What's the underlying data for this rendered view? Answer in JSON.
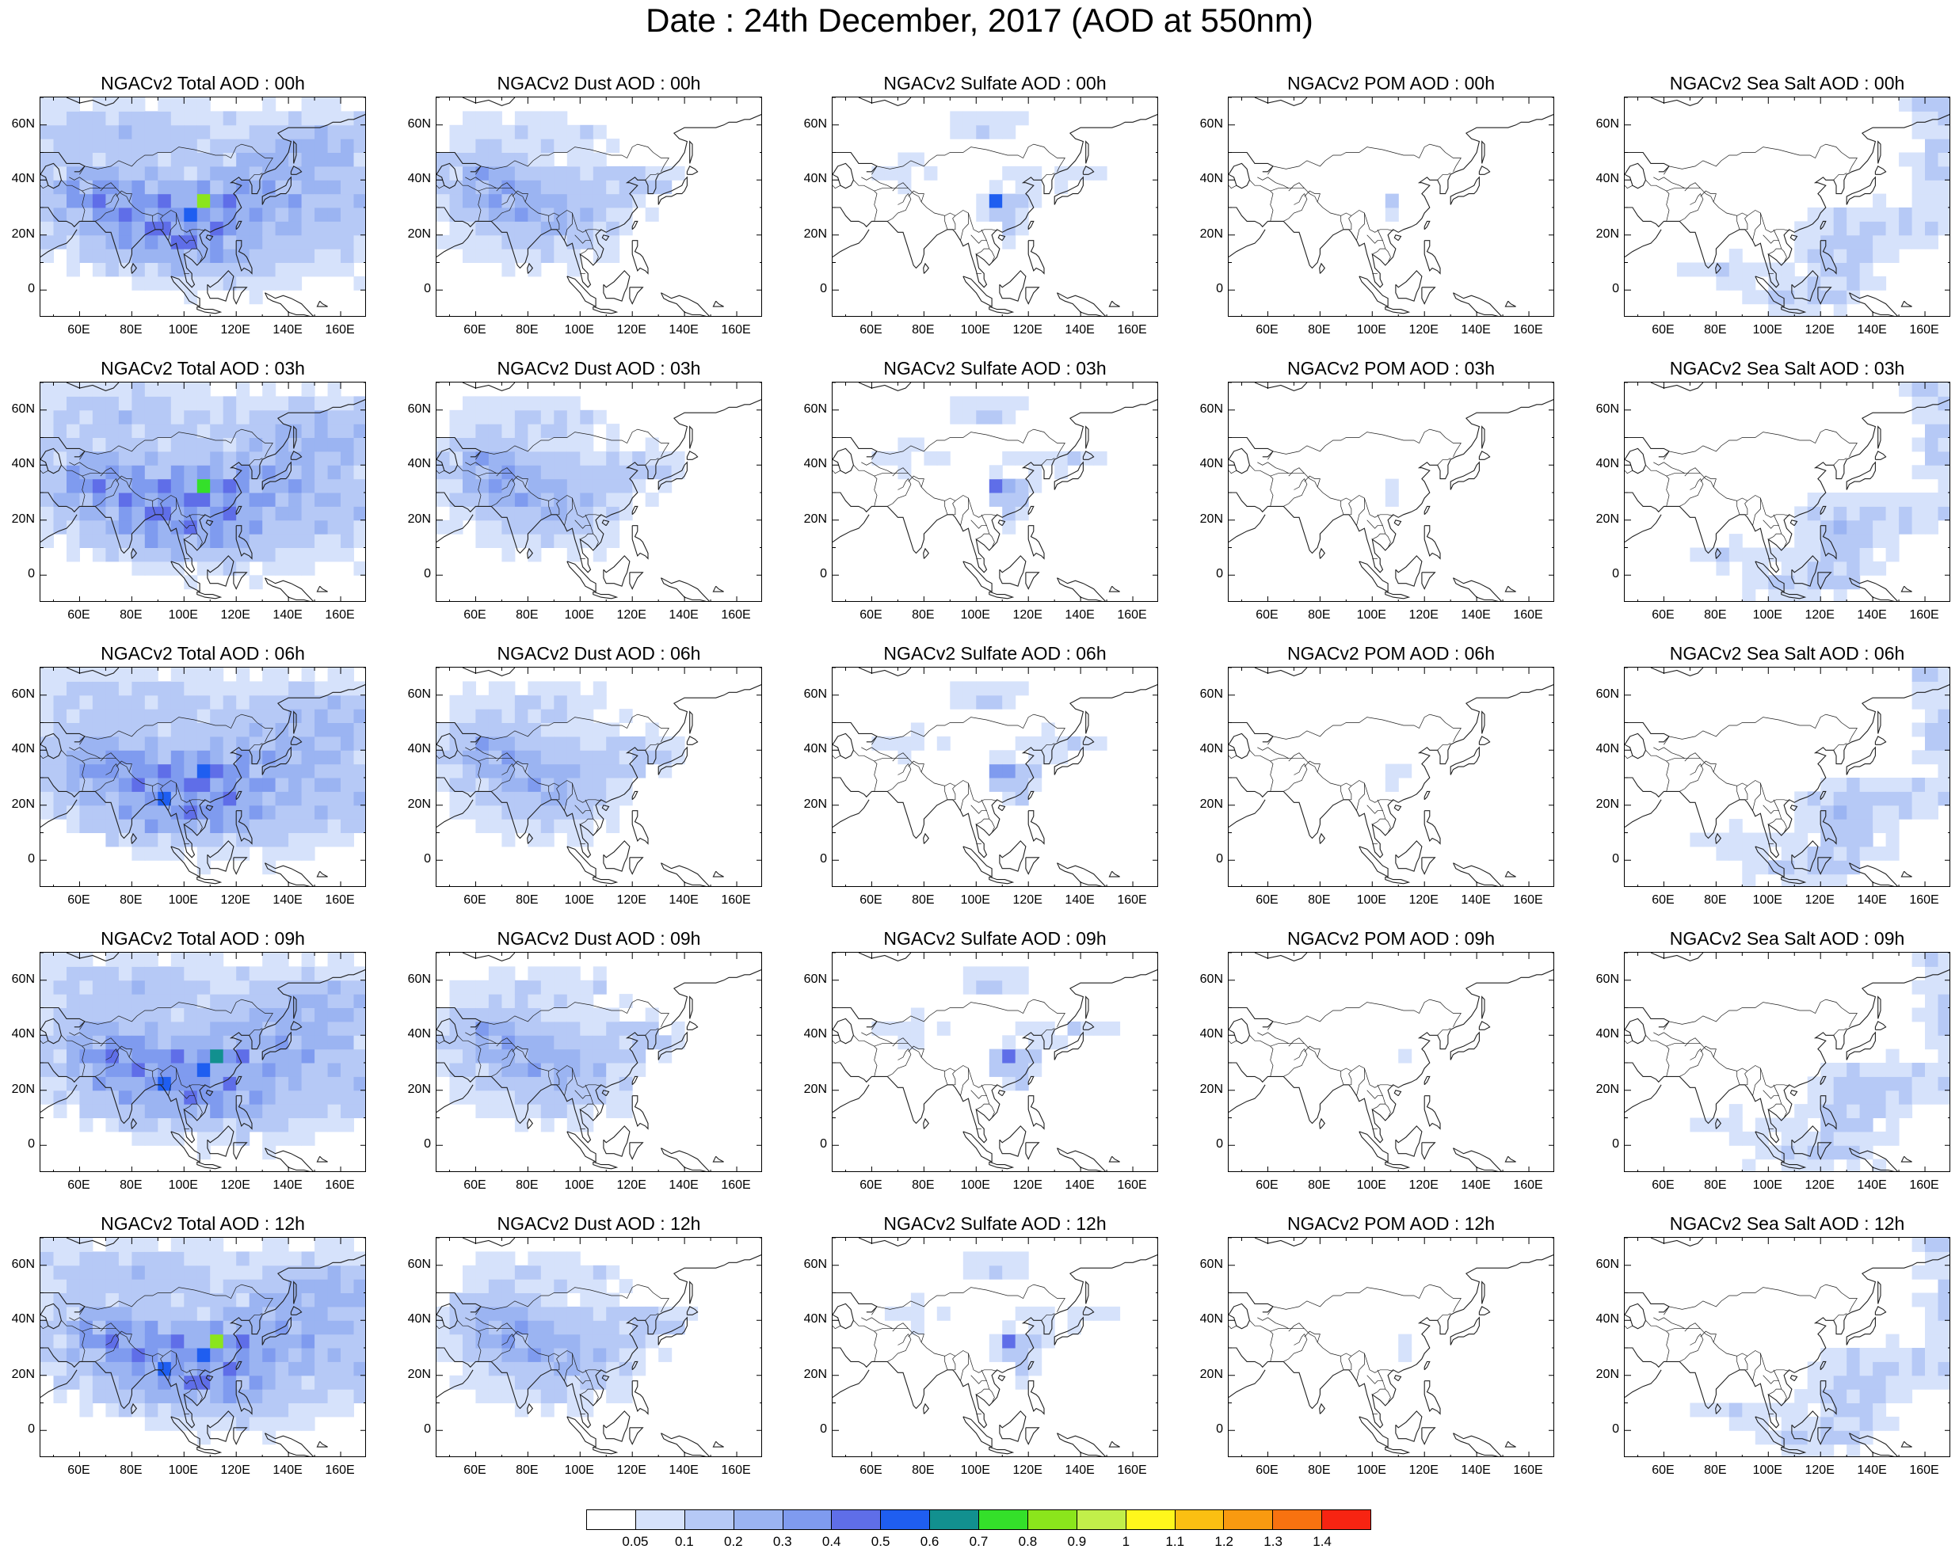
{
  "title": "Date : 24th December, 2017 (AOD at 550nm)",
  "lat_ticks": [
    "60N",
    "40N",
    "20N",
    "0"
  ],
  "lon_ticks": [
    "60E",
    "80E",
    "100E",
    "120E",
    "140E",
    "160E"
  ],
  "colors": {
    "land_outline": "#1f1f1f",
    "background": "#ffffff"
  },
  "panels": [
    [
      "NGACv2 Total AOD : 00h",
      "NGACv2 Dust AOD : 00h",
      "NGACv2 Sulfate AOD : 00h",
      "NGACv2 POM AOD : 00h",
      "NGACv2 Sea Salt AOD : 00h"
    ],
    [
      "NGACv2 Total AOD : 03h",
      "NGACv2 Dust AOD : 03h",
      "NGACv2 Sulfate AOD : 03h",
      "NGACv2 POM AOD : 03h",
      "NGACv2 Sea Salt AOD : 03h"
    ],
    [
      "NGACv2 Total AOD : 06h",
      "NGACv2 Dust AOD : 06h",
      "NGACv2 Sulfate AOD : 06h",
      "NGACv2 POM AOD : 06h",
      "NGACv2 Sea Salt AOD : 06h"
    ],
    [
      "NGACv2 Total AOD : 09h",
      "NGACv2 Dust AOD : 09h",
      "NGACv2 Sulfate AOD : 09h",
      "NGACv2 POM AOD : 09h",
      "NGACv2 Sea Salt  AOD : 09h"
    ],
    [
      "NGACv2 Total AOD  : 12h",
      "NGACv2 Dust AOD : 12h",
      "NGACv2 Sulfate AOD : 12h",
      "NGACv2 POM  AOD : 12h",
      "NGACv2 Sea Salt  AOD : 12h"
    ]
  ],
  "colorbar": {
    "labels": [
      "0.05",
      "0.1",
      "0.2",
      "0.3",
      "0.4",
      "0.5",
      "0.6",
      "0.7",
      "0.8",
      "0.9",
      "1",
      "1.1",
      "1.2",
      "1.3",
      "1.4"
    ],
    "colors": [
      "#ffffff",
      "#d6e2fb",
      "#b6c9f6",
      "#9bb4f2",
      "#7f9bef",
      "#5f6ee8",
      "#1f5ef0",
      "#12908f",
      "#34e02a",
      "#8be51c",
      "#c2ef4a",
      "#fff71c",
      "#fbbf12",
      "#f99a10",
      "#f87210",
      "#f72412"
    ]
  }
}
